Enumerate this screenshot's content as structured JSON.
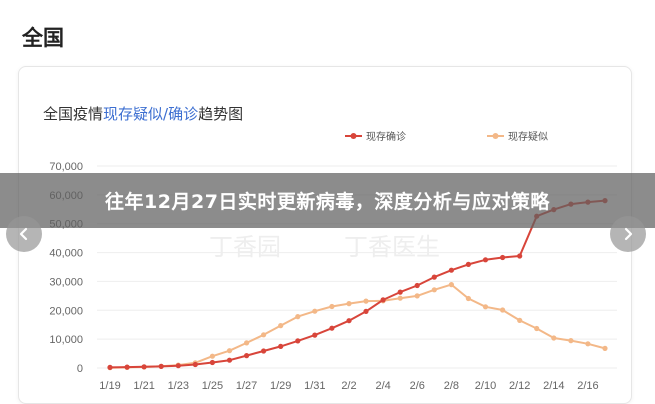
{
  "page": {
    "heading": "全国",
    "banner_text": "往年12月27日实时更新病毒，深度分析与应对策略"
  },
  "watermark": [
    "丁香园",
    "丁香医生"
  ],
  "colors": {
    "confirmed": "#d8453a",
    "suspected": "#f3b888",
    "title_highlight": "#3d6fd1",
    "title_dark": "#333333",
    "grid": "#eeeeee"
  },
  "chart_data": {
    "type": "line",
    "title_parts": [
      "全国疫情",
      "现存疑似",
      "/",
      "确诊",
      "趋势图"
    ],
    "x": [
      "1/19",
      "1/20",
      "1/21",
      "1/22",
      "1/23",
      "1/24",
      "1/25",
      "1/26",
      "1/27",
      "1/28",
      "1/29",
      "1/30",
      "1/31",
      "2/1",
      "2/2",
      "2/3",
      "2/4",
      "2/5",
      "2/6",
      "2/7",
      "2/8",
      "2/9",
      "2/10",
      "2/11",
      "2/12",
      "2/13",
      "2/14",
      "2/15",
      "2/16",
      "2/17"
    ],
    "x_tick_labels": [
      "1/19",
      "1/21",
      "1/23",
      "1/25",
      "1/27",
      "1/29",
      "1/31",
      "2/2",
      "2/4",
      "2/6",
      "2/8",
      "2/10",
      "2/12",
      "2/14",
      "2/16"
    ],
    "ylim": [
      0,
      70000
    ],
    "y_ticks": [
      0,
      10000,
      20000,
      30000,
      40000,
      50000,
      60000,
      70000
    ],
    "y_tick_labels": [
      "0",
      "10,000",
      "20,000",
      "30,000",
      "40,000",
      "50,000",
      "60,000",
      "70,000"
    ],
    "grid": true,
    "legend_position": "top-right",
    "series": [
      {
        "name": "现存确诊",
        "color": "#d8453a",
        "values": [
          200,
          300,
          400,
          550,
          800,
          1200,
          1900,
          2700,
          4300,
          5900,
          7500,
          9400,
          11400,
          13800,
          16400,
          19600,
          23600,
          26300,
          28600,
          31500,
          33900,
          35900,
          37500,
          38300,
          38800,
          52600,
          54900,
          56800,
          57500,
          58000
        ]
      },
      {
        "name": "现存疑似",
        "color": "#f3b888",
        "values": [
          100,
          200,
          350,
          600,
          1000,
          1800,
          4100,
          6000,
          8700,
          11500,
          14700,
          17800,
          19700,
          21300,
          22300,
          23200,
          23300,
          24200,
          25000,
          27100,
          28900,
          24100,
          21200,
          20100,
          16500,
          13700,
          10400,
          9500,
          8400,
          6800
        ]
      }
    ]
  }
}
